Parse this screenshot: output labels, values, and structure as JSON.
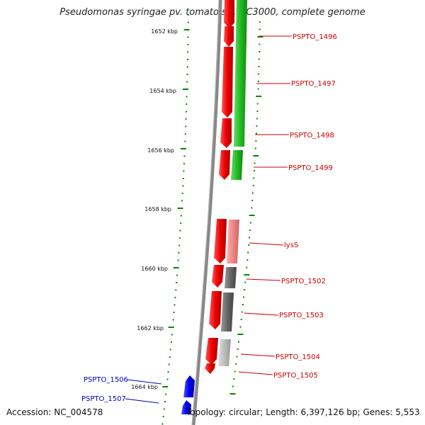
{
  "title": "Pseudomonas syringae pv. tomato str. DC3000, complete genome",
  "footer": {
    "accession": "Accession: NC_004578",
    "summary": "Topology: circular; Length: 6,397,126 bp; Genes: 5,553"
  },
  "ruler": {
    "ticks": [
      "1652 kbp",
      "1654 kbp",
      "1656 kbp",
      "1658 kbp",
      "1660 kbp",
      "1662 kbp",
      "1664 kbp"
    ]
  },
  "genes_forward": [
    {
      "label": "PSPTO_1496"
    },
    {
      "label": "PSPTO_1497"
    },
    {
      "label": "PSPTO_1498"
    },
    {
      "label": "PSPTO_1499"
    },
    {
      "label": "lysS"
    },
    {
      "label": "PSPTO_1502"
    },
    {
      "label": "PSPTO_1503"
    },
    {
      "label": "PSPTO_1504"
    },
    {
      "label": "PSPTO_1505"
    }
  ],
  "genes_reverse": [
    {
      "label": "PSPTO_1506"
    },
    {
      "label": "PSPTO_1507"
    }
  ],
  "colors": {
    "forward_label": "#cc0000",
    "reverse_label": "#0000bb",
    "gene_red": "#ee0000",
    "gene_green": "#22bb22",
    "gene_pink": "#ee8888",
    "gene_gray": "#666666",
    "gene_lightgray": "#bbbbbb",
    "gene_blue": "#0000ee",
    "backbone": "#888888",
    "tick": "#008800"
  }
}
